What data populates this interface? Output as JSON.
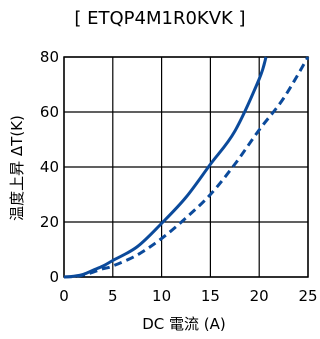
{
  "chart_data": {
    "type": "line",
    "title": "[ ETQP4M1R0KVK ]",
    "xlabel": "DC 電流 (A)",
    "ylabel": "温度上昇 ΔT(K)",
    "xlim": [
      0,
      25
    ],
    "ylim": [
      0,
      80
    ],
    "xticks": [
      0,
      5,
      10,
      15,
      20,
      25
    ],
    "yticks": [
      0,
      20,
      40,
      60,
      80
    ],
    "grid": true,
    "line_color": "#0b4a9b",
    "series": [
      {
        "style": "solid",
        "points": [
          [
            0,
            0
          ],
          [
            1,
            0.3
          ],
          [
            2,
            1
          ],
          [
            3,
            2.5
          ],
          [
            4,
            4
          ],
          [
            5,
            6
          ],
          [
            7.5,
            11
          ],
          [
            10,
            19.5
          ],
          [
            12.5,
            29
          ],
          [
            15,
            41
          ],
          [
            17.5,
            53
          ],
          [
            20,
            72
          ],
          [
            20.7,
            80
          ]
        ]
      },
      {
        "style": "dashed",
        "points": [
          [
            0,
            0
          ],
          [
            1,
            0.2
          ],
          [
            2,
            0.7
          ],
          [
            3,
            1.8
          ],
          [
            4,
            3
          ],
          [
            5,
            4
          ],
          [
            7.5,
            8
          ],
          [
            10,
            14
          ],
          [
            12.5,
            21.5
          ],
          [
            15,
            30
          ],
          [
            17.5,
            41
          ],
          [
            20,
            53.5
          ],
          [
            22.5,
            65
          ],
          [
            25,
            80
          ]
        ]
      }
    ]
  }
}
